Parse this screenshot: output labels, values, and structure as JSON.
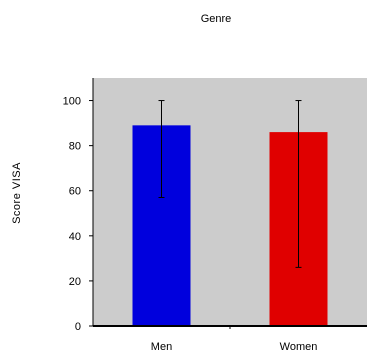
{
  "chart_data": {
    "type": "bar",
    "title": "Genre",
    "xlabel": "",
    "ylabel": "Score VISA",
    "categories": [
      "Men",
      "Women"
    ],
    "values": [
      89,
      86
    ],
    "error_low": [
      57,
      26
    ],
    "error_high": [
      100,
      100
    ],
    "colors": [
      "#0000dd",
      "#e00000"
    ],
    "ylim": [
      0,
      110
    ],
    "yticks": [
      0,
      20,
      40,
      60,
      80,
      100
    ],
    "plot_background": "#cccccc",
    "grid": false,
    "legend": "none"
  }
}
